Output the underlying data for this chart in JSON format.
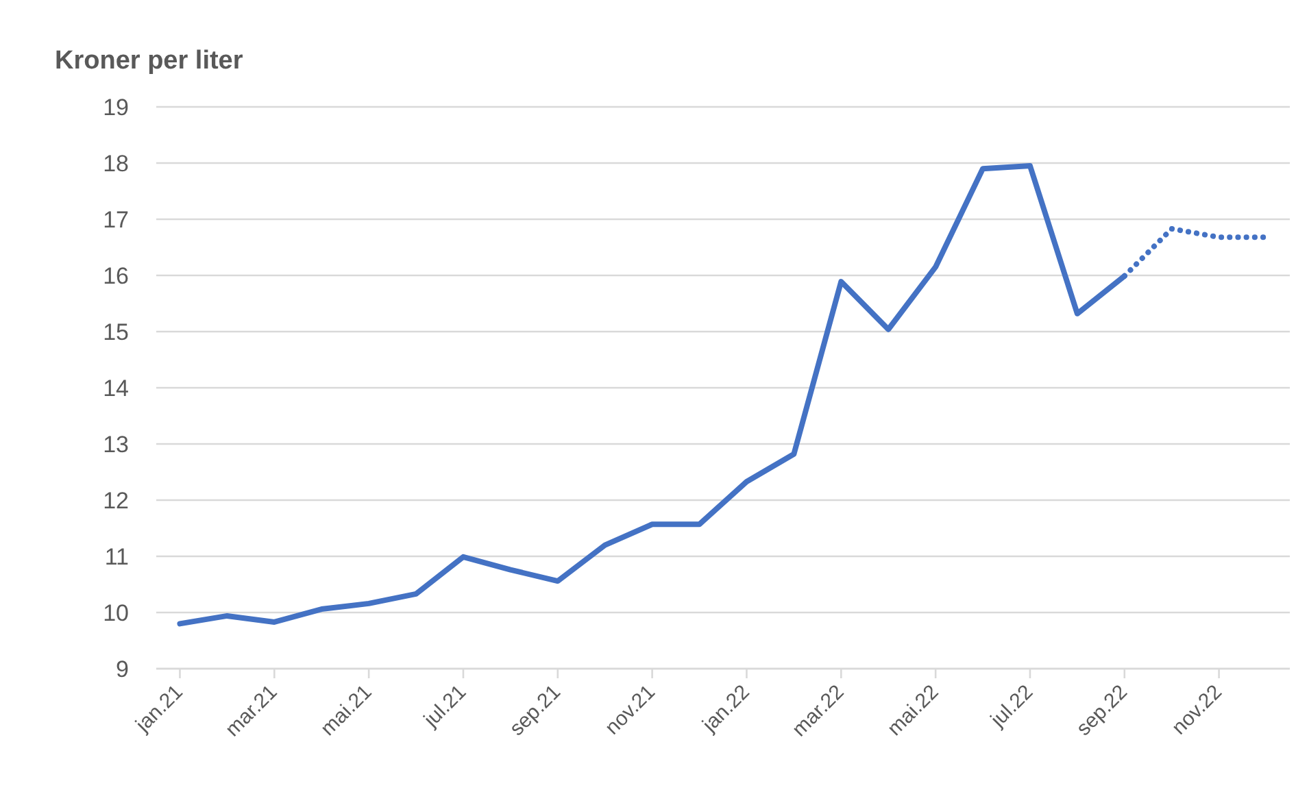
{
  "chart_data": {
    "type": "line",
    "ylabel": "Kroner per liter",
    "categories": [
      "jan.21",
      null,
      "mar.21",
      null,
      "mai.21",
      null,
      "jul.21",
      null,
      "sep.21",
      null,
      "nov.21",
      null,
      "jan.22",
      null,
      "mar.22",
      null,
      "mai.22",
      null,
      "jul.22",
      null,
      "sep.22",
      null,
      "nov.22",
      null
    ],
    "series": [
      {
        "color": "#4472c4",
        "line_style": "solid",
        "values": [
          9.8,
          9.94,
          9.83,
          10.06,
          10.16,
          10.33,
          10.99,
          10.76,
          10.56,
          11.2,
          11.57,
          11.57,
          12.33,
          12.82,
          15.89,
          15.04,
          16.15,
          17.9,
          17.95,
          15.32,
          15.99,
          null,
          null,
          null
        ]
      },
      {
        "color": "#4472c4",
        "line_style": "dotted",
        "values": [
          null,
          null,
          null,
          null,
          null,
          null,
          null,
          null,
          null,
          null,
          null,
          null,
          null,
          null,
          null,
          null,
          null,
          null,
          null,
          null,
          15.99,
          16.83,
          16.68,
          16.68
        ]
      }
    ],
    "ylim": [
      9,
      19
    ],
    "yticks": [
      9,
      10,
      11,
      12,
      13,
      14,
      15,
      16,
      17,
      18,
      19
    ],
    "grid": "y",
    "marker": "none",
    "legend": false
  }
}
